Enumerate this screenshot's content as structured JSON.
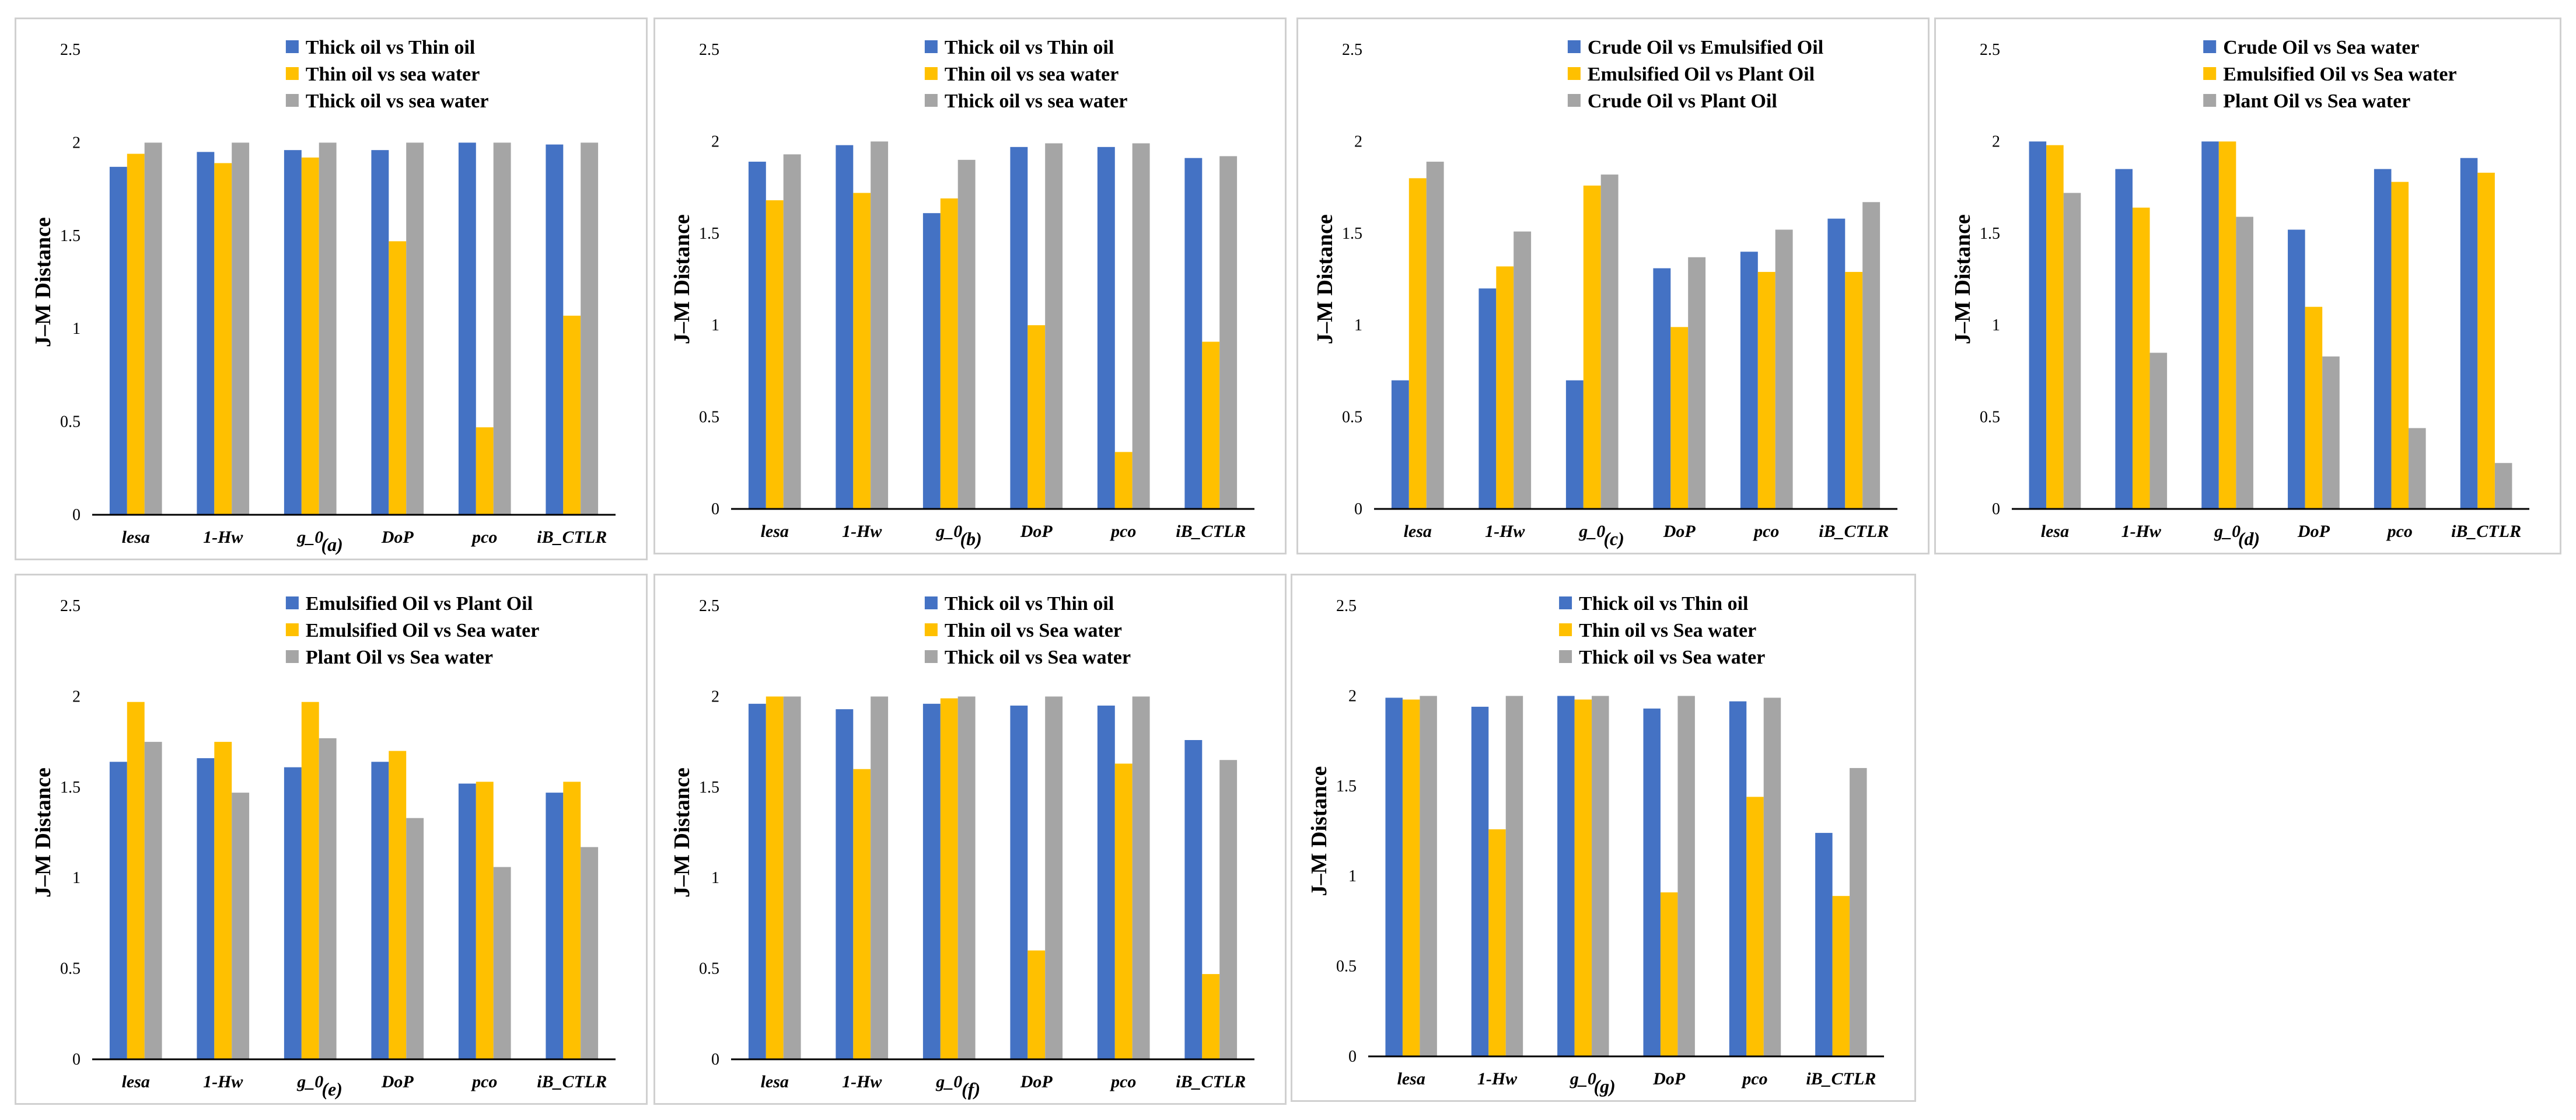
{
  "colors": {
    "series1": "#4472C4",
    "series2": "#FFC000",
    "series3": "#A5A5A5",
    "axis": "#000000"
  },
  "chart_data": [
    {
      "type": "bar",
      "panel_label": "(a)",
      "ylabel": "J–M Distance",
      "xlabel": "",
      "ylim": [
        0,
        2.5
      ],
      "yticks": [
        "0",
        "0.5",
        "1",
        "1.5",
        "2",
        "2.5"
      ],
      "legend_position": "top-right",
      "categories": [
        "lesa",
        "1-Hw",
        "g_0",
        "DoP",
        "pco",
        "iB_CTLR"
      ],
      "series": [
        {
          "name": "Thick oil vs Thin oil",
          "values": [
            1.87,
            1.95,
            1.96,
            1.96,
            2.0,
            1.99
          ]
        },
        {
          "name": " Thin oil vs sea water",
          "values": [
            1.94,
            1.89,
            1.92,
            1.47,
            0.47,
            1.07
          ]
        },
        {
          "name": "Thick oil vs sea water",
          "values": [
            2.0,
            2.0,
            2.0,
            2.0,
            2.0,
            2.0
          ]
        }
      ]
    },
    {
      "type": "bar",
      "panel_label": "(b)",
      "ylabel": "J–M Distance",
      "xlabel": "",
      "ylim": [
        0,
        2.5
      ],
      "yticks": [
        "0",
        "0.5",
        "1",
        "1.5",
        "2",
        "2.5"
      ],
      "legend_position": "top-right",
      "categories": [
        "lesa",
        "1-Hw",
        "g_0",
        "DoP",
        "pco",
        "iB_CTLR"
      ],
      "series": [
        {
          "name": "Thick oil vs Thin oil",
          "values": [
            1.89,
            1.98,
            1.61,
            1.97,
            1.97,
            1.91
          ]
        },
        {
          "name": " Thin oil vs sea water",
          "values": [
            1.68,
            1.72,
            1.69,
            1.0,
            0.31,
            0.91
          ]
        },
        {
          "name": "Thick oil vs sea water",
          "values": [
            1.93,
            2.0,
            1.9,
            1.99,
            1.99,
            1.92
          ]
        }
      ]
    },
    {
      "type": "bar",
      "panel_label": "(c)",
      "ylabel": "J–M Distance",
      "xlabel": "",
      "ylim": [
        0,
        2.5
      ],
      "yticks": [
        "0",
        "0.5",
        "1",
        "1.5",
        "2",
        "2.5"
      ],
      "legend_position": "top-right",
      "categories": [
        "lesa",
        "1-Hw",
        "g_0",
        "DoP",
        "pco",
        "iB_CTLR"
      ],
      "series": [
        {
          "name": "Crude Oil vs Emulsified Oil",
          "values": [
            0.7,
            1.2,
            0.7,
            1.31,
            1.4,
            1.58
          ]
        },
        {
          "name": "Emulsified Oil vs Plant Oil",
          "values": [
            1.8,
            1.32,
            1.76,
            0.99,
            1.29,
            1.29
          ]
        },
        {
          "name": "Crude Oil vs Plant Oil",
          "values": [
            1.89,
            1.51,
            1.82,
            1.37,
            1.52,
            1.67
          ]
        }
      ]
    },
    {
      "type": "bar",
      "panel_label": "(d)",
      "ylabel": "J–M Distance",
      "xlabel": "",
      "ylim": [
        0,
        2.5
      ],
      "yticks": [
        "0",
        "0.5",
        "1",
        "1.5",
        "2",
        "2.5"
      ],
      "legend_position": "top-right",
      "categories": [
        "lesa",
        "1-Hw",
        "g_0",
        "DoP",
        "pco",
        "iB_CTLR"
      ],
      "series": [
        {
          "name": "Crude Oil vs Sea water",
          "values": [
            2.0,
            1.85,
            2.0,
            1.52,
            1.85,
            1.91
          ]
        },
        {
          "name": "Emulsified Oil vs Sea water",
          "values": [
            1.98,
            1.64,
            2.0,
            1.1,
            1.78,
            1.83
          ]
        },
        {
          "name": "Plant Oil vs Sea water",
          "values": [
            1.72,
            0.85,
            1.59,
            0.83,
            0.44,
            0.25
          ]
        }
      ]
    },
    {
      "type": "bar",
      "panel_label": "(e)",
      "ylabel": "J–M Distance",
      "xlabel": "",
      "ylim": [
        0,
        2.5
      ],
      "yticks": [
        "0",
        "0.5",
        "1",
        "1.5",
        "2",
        "2.5"
      ],
      "legend_position": "top-right",
      "categories": [
        "lesa",
        "1-Hw",
        "g_0",
        "DoP",
        "pco",
        "iB_CTLR"
      ],
      "series": [
        {
          "name": "Emulsified Oil vs Plant Oil",
          "values": [
            1.64,
            1.66,
            1.61,
            1.64,
            1.52,
            1.47
          ]
        },
        {
          "name": "Emulsified Oil vs Sea water",
          "values": [
            1.97,
            1.75,
            1.97,
            1.7,
            1.53,
            1.53
          ]
        },
        {
          "name": "Plant Oil vs Sea water",
          "values": [
            1.75,
            1.47,
            1.77,
            1.33,
            1.06,
            1.17
          ]
        }
      ]
    },
    {
      "type": "bar",
      "panel_label": "(f)",
      "ylabel": "J–M Distance",
      "xlabel": "",
      "ylim": [
        0,
        2.5
      ],
      "yticks": [
        "0",
        "0.5",
        "1",
        "1.5",
        "2",
        "2.5"
      ],
      "legend_position": "top-right",
      "categories": [
        "lesa",
        "1-Hw",
        "g_0",
        "DoP",
        "pco",
        "iB_CTLR"
      ],
      "series": [
        {
          "name": "Thick oil vs Thin oil",
          "values": [
            1.96,
            1.93,
            1.96,
            1.95,
            1.95,
            1.76
          ]
        },
        {
          "name": " Thin oil vs Sea water",
          "values": [
            2.0,
            1.6,
            1.99,
            0.6,
            1.63,
            0.47
          ]
        },
        {
          "name": "Thick oil vs Sea water",
          "values": [
            2.0,
            2.0,
            2.0,
            2.0,
            2.0,
            1.65
          ]
        }
      ]
    },
    {
      "type": "bar",
      "panel_label": "(g)",
      "ylabel": "J–M Distance",
      "xlabel": "",
      "ylim": [
        0,
        2.5
      ],
      "yticks": [
        "0",
        "0.5",
        "1",
        "1.5",
        "2",
        "2.5"
      ],
      "legend_position": "top-right",
      "categories": [
        "lesa",
        "1-Hw",
        "g_0",
        "DoP",
        "pco",
        "iB_CTLR"
      ],
      "series": [
        {
          "name": "Thick oil vs Thin oil",
          "values": [
            1.99,
            1.94,
            2.0,
            1.93,
            1.97,
            1.24
          ]
        },
        {
          "name": " Thin oil vs Sea water",
          "values": [
            1.98,
            1.26,
            1.98,
            0.91,
            1.44,
            0.89
          ]
        },
        {
          "name": "Thick oil vs Sea water",
          "values": [
            2.0,
            2.0,
            2.0,
            2.0,
            1.99,
            1.6
          ]
        }
      ]
    }
  ]
}
